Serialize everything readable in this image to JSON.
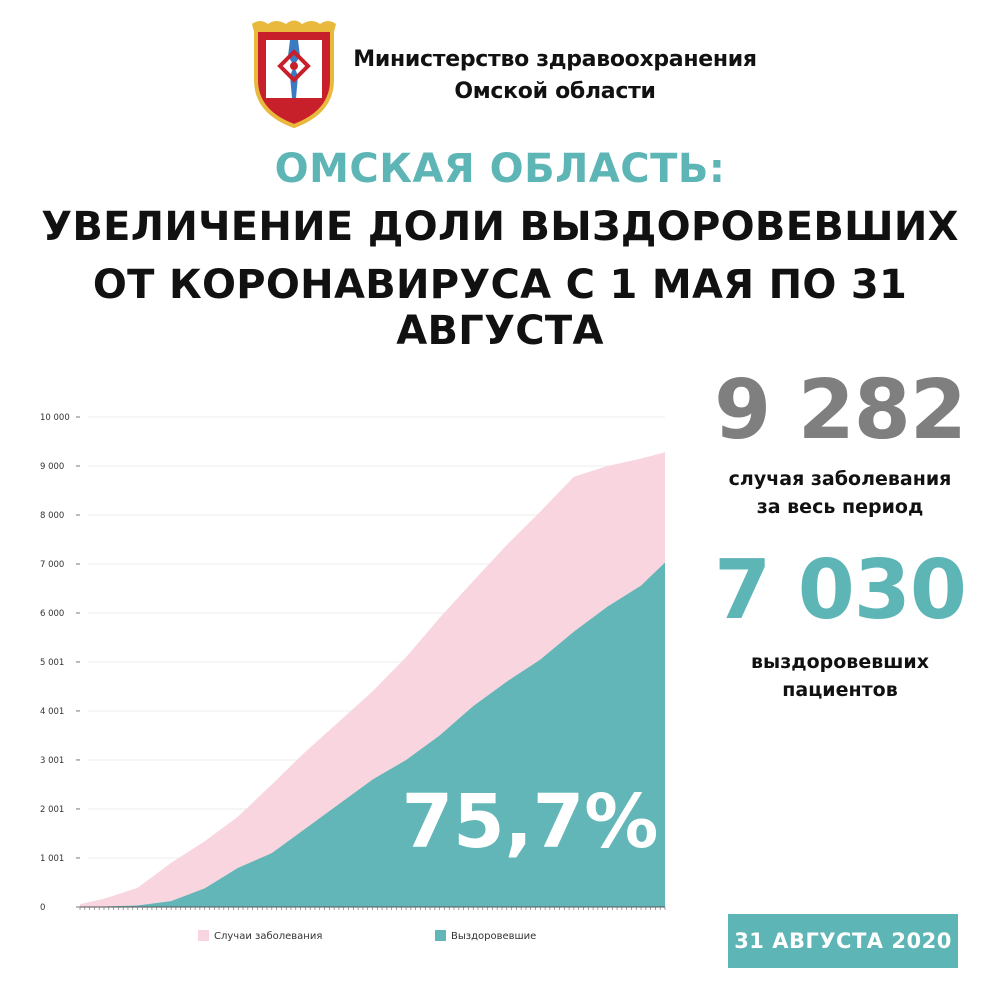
{
  "header": {
    "ministry_line1": "Министерство здравоохранения",
    "ministry_line2": "Омской области",
    "title_line1": "ОМСКАЯ ОБЛАСТЬ:",
    "title_line2": "УВЕЛИЧЕНИЕ ДОЛИ ВЫЗДОРОВЕВШИХ",
    "title_line3": "ОТ КОРОНАВИРУСА С 1 МАЯ ПО 31 АВГУСТА"
  },
  "stats": {
    "cases_value": "9 282",
    "cases_label_line1": "случая заболевания",
    "cases_label_line2": "за весь период",
    "recovered_value": "7 030",
    "recovered_label_line1": "выздоровевших",
    "recovered_label_line2": "пациентов"
  },
  "date_badge": "31 АВГУСТА 2020",
  "colors": {
    "accent": "#5db5b6",
    "cases_fill": "#f9d5df",
    "recovered_fill": "#62b6b7",
    "big_number_gray": "#7f7f7f"
  },
  "chart_data": {
    "type": "area",
    "x_start": "2020-05-01",
    "x_end": "2020-08-31",
    "ylim": [
      0,
      10000
    ],
    "y_ticks": [
      {
        "value": 0,
        "label": "0"
      },
      {
        "value": 1001,
        "label": "1 001"
      },
      {
        "value": 2001,
        "label": "2 001"
      },
      {
        "value": 3001,
        "label": "3 001"
      },
      {
        "value": 4001,
        "label": "4 001"
      },
      {
        "value": 5001,
        "label": "5 001"
      },
      {
        "value": 6000,
        "label": "6 000"
      },
      {
        "value": 7000,
        "label": "7 000"
      },
      {
        "value": 8000,
        "label": "8 000"
      },
      {
        "value": 9000,
        "label": "9 000"
      },
      {
        "value": 10000,
        "label": "10 000"
      }
    ],
    "x": [
      "2020-05-01",
      "2020-05-06",
      "2020-05-13",
      "2020-05-20",
      "2020-05-27",
      "2020-06-03",
      "2020-06-10",
      "2020-06-17",
      "2020-06-24",
      "2020-07-01",
      "2020-07-08",
      "2020-07-15",
      "2020-07-22",
      "2020-07-29",
      "2020-08-05",
      "2020-08-12",
      "2020-08-19",
      "2020-08-26",
      "2020-08-31"
    ],
    "series": [
      {
        "name": "Случаи заболевания",
        "color": "#f9d5df",
        "values": [
          60,
          170,
          390,
          900,
          1340,
          1850,
          2500,
          3170,
          3780,
          4400,
          5100,
          5900,
          6650,
          7390,
          8070,
          8780,
          9000,
          9150,
          9282
        ]
      },
      {
        "name": "Выздоровевшие",
        "color": "#62b6b7",
        "values": [
          0,
          10,
          30,
          120,
          380,
          800,
          1100,
          1600,
          2100,
          2600,
          3000,
          3500,
          4100,
          4600,
          5050,
          5620,
          6130,
          6560,
          7030
        ]
      }
    ],
    "annotation": "75,7%",
    "legend_position": "bottom",
    "grid": true
  }
}
